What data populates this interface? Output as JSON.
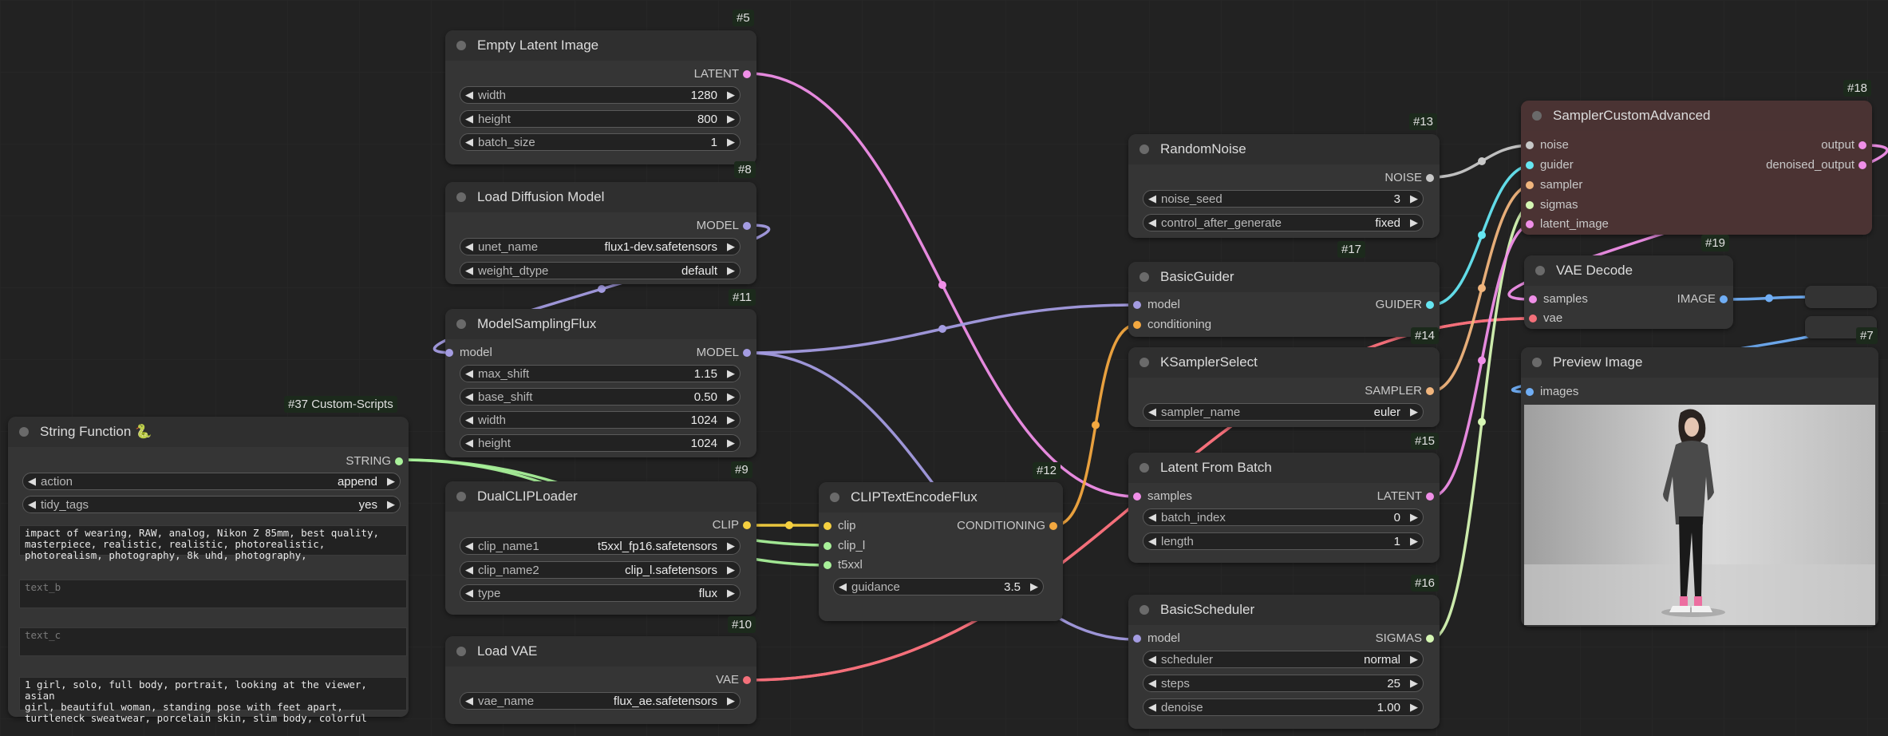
{
  "colors": {
    "model": "#a49ce2",
    "clip": "#f5d040",
    "conditioning": "#f3a840",
    "latent": "#f08fe8",
    "vae": "#f4707a",
    "noise": "#c8c8c8",
    "guider": "#66e6f2",
    "sampler": "#f1b57d",
    "sigmas": "#d6f7b4",
    "image": "#70aef5",
    "string": "#a9f19a",
    "images": "#70aef5"
  },
  "nodes": {
    "empty_latent": {
      "id": "#5",
      "title": "Empty Latent Image",
      "out": "LATENT",
      "widgets": [
        [
          "width",
          "1280"
        ],
        [
          "height",
          "800"
        ],
        [
          "batch_size",
          "1"
        ]
      ]
    },
    "load_diffusion": {
      "id": "#8",
      "title": "Load Diffusion Model",
      "out": "MODEL",
      "widgets": [
        [
          "unet_name",
          "flux1-dev.safetensors"
        ],
        [
          "weight_dtype",
          "default"
        ]
      ]
    },
    "model_sampling": {
      "id": "#11",
      "title": "ModelSamplingFlux",
      "in": "model",
      "out": "MODEL",
      "widgets": [
        [
          "max_shift",
          "1.15"
        ],
        [
          "base_shift",
          "0.50"
        ],
        [
          "width",
          "1024"
        ],
        [
          "height",
          "1024"
        ]
      ]
    },
    "string_function": {
      "id": "#37 Custom-Scripts",
      "title": "String Function 🐍",
      "out": "STRING",
      "widgets": [
        [
          "action",
          "append"
        ],
        [
          "tidy_tags",
          "yes"
        ]
      ],
      "text_a": "impact of wearing, RAW, analog, Nikon Z 85mm, best quality,\nmasterpiece, realistic, realistic, photorealistic,\nphotorealism, photography, 8k uhd, photography,",
      "text_b": "text_b",
      "text_c": "text_c",
      "text_d": "1 girl, solo, full body, portrait, looking at the viewer, asian\ngirl, beautiful woman, standing pose with feet apart,\nturtleneck sweatwear, porcelain skin, slim body, colorful"
    },
    "dual_clip": {
      "id": "#9",
      "title": "DualCLIPLoader",
      "out": "CLIP",
      "widgets": [
        [
          "clip_name1",
          "t5xxl_fp16.safetensors"
        ],
        [
          "clip_name2",
          "clip_l.safetensors"
        ],
        [
          "type",
          "flux"
        ]
      ]
    },
    "load_vae": {
      "id": "#10",
      "title": "Load VAE",
      "out": "VAE",
      "widgets": [
        [
          "vae_name",
          "flux_ae.safetensors"
        ]
      ]
    },
    "clip_text_encode": {
      "id": "#12",
      "title": "CLIPTextEncodeFlux",
      "ins": [
        "clip",
        "clip_l",
        "t5xxl"
      ],
      "out": "CONDITIONING",
      "widgets": [
        [
          "guidance",
          "3.5"
        ]
      ]
    },
    "random_noise": {
      "id": "#13",
      "title": "RandomNoise",
      "out": "NOISE",
      "widgets": [
        [
          "noise_seed",
          "3"
        ],
        [
          "control_after_generate",
          "fixed"
        ]
      ]
    },
    "basic_guider": {
      "id": "#17",
      "title": "BasicGuider",
      "ins": [
        "model",
        "conditioning"
      ],
      "out": "GUIDER"
    },
    "ksampler_select": {
      "id": "#14",
      "title": "KSamplerSelect",
      "out": "SAMPLER",
      "widgets": [
        [
          "sampler_name",
          "euler"
        ]
      ]
    },
    "latent_from_batch": {
      "id": "#15",
      "title": "Latent From Batch",
      "in": "samples",
      "out": "LATENT",
      "widgets": [
        [
          "batch_index",
          "0"
        ],
        [
          "length",
          "1"
        ]
      ]
    },
    "basic_scheduler": {
      "id": "#16",
      "title": "BasicScheduler",
      "in": "model",
      "out": "SIGMAS",
      "widgets": [
        [
          "scheduler",
          "normal"
        ],
        [
          "steps",
          "25"
        ],
        [
          "denoise",
          "1.00"
        ]
      ]
    },
    "sampler_custom": {
      "id": "#18",
      "title": "SamplerCustomAdvanced",
      "ins": [
        "noise",
        "guider",
        "sampler",
        "sigmas",
        "latent_image"
      ],
      "outs": [
        "output",
        "denoised_output"
      ]
    },
    "vae_decode": {
      "id": "#19",
      "title": "VAE Decode",
      "ins": [
        "samples",
        "vae"
      ],
      "out": "IMAGE"
    },
    "preview_image": {
      "id": "#7",
      "title": "Preview Image",
      "in": "images"
    }
  }
}
